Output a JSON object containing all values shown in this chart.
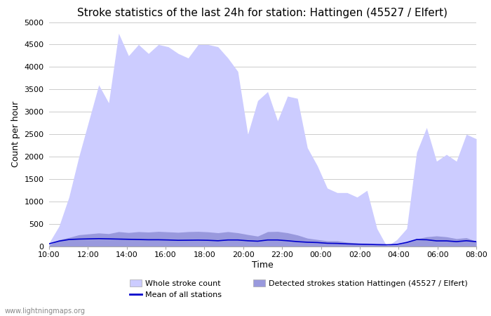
{
  "title": "Stroke statistics of the last 24h for station: Hattingen (45527 / Elfert)",
  "xlabel": "Time",
  "ylabel": "Count per hour",
  "ylim": [
    0,
    5000
  ],
  "yticks": [
    0,
    500,
    1000,
    1500,
    2000,
    2500,
    3000,
    3500,
    4000,
    4500,
    5000
  ],
  "xtick_labels": [
    "10:00",
    "12:00",
    "14:00",
    "16:00",
    "18:00",
    "20:00",
    "22:00",
    "00:00",
    "02:00",
    "04:00",
    "06:00",
    "08:00"
  ],
  "watermark": "www.lightningmaps.org",
  "whole_stroke_color": "#ccccff",
  "detected_stroke_color": "#9999dd",
  "mean_line_color": "#0000cc",
  "background_color": "#ffffff",
  "grid_color": "#cccccc",
  "title_fontsize": 11,
  "axis_label_fontsize": 9,
  "tick_fontsize": 8,
  "legend_fontsize": 8,
  "whole_stroke_data": [
    80,
    450,
    1100,
    2000,
    2800,
    3600,
    3200,
    4750,
    4250,
    4500,
    4300,
    4500,
    4450,
    4300,
    4200,
    4500,
    4500,
    4450,
    4200,
    3900,
    2500,
    3250,
    3450,
    2800,
    3350,
    3300,
    2200,
    1800,
    1300,
    1200,
    1200,
    1100,
    1250,
    400,
    0,
    150,
    400,
    2100,
    2650,
    1900,
    2050,
    1900,
    2500,
    2400
  ],
  "detected_stroke_data": [
    30,
    150,
    200,
    260,
    280,
    300,
    285,
    330,
    310,
    330,
    320,
    335,
    325,
    315,
    330,
    335,
    325,
    305,
    330,
    305,
    265,
    230,
    330,
    335,
    305,
    255,
    185,
    155,
    125,
    125,
    95,
    75,
    50,
    45,
    30,
    35,
    90,
    170,
    215,
    235,
    215,
    175,
    195,
    115
  ],
  "mean_line_data": [
    60,
    120,
    155,
    165,
    170,
    175,
    170,
    165,
    160,
    155,
    150,
    150,
    145,
    138,
    140,
    142,
    138,
    128,
    145,
    145,
    128,
    118,
    145,
    145,
    128,
    108,
    95,
    88,
    72,
    68,
    58,
    52,
    48,
    42,
    38,
    45,
    90,
    155,
    150,
    125,
    125,
    108,
    128,
    108
  ]
}
